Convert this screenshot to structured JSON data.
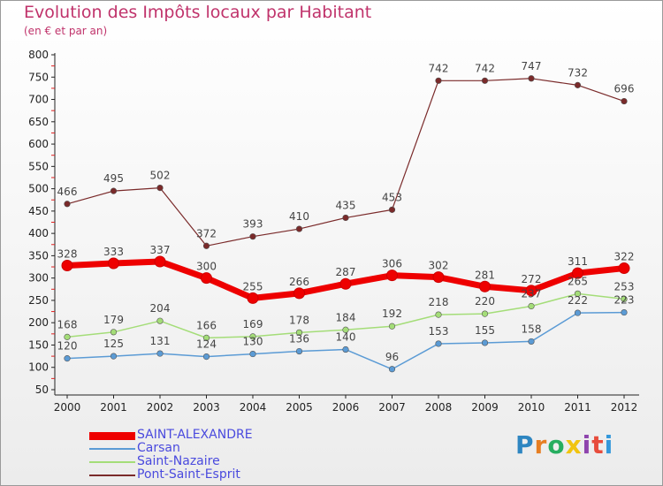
{
  "title": "Evolution des Impôts locaux par Habitant",
  "subtitle": "(en € et par an)",
  "logo": {
    "text": "Proxiti",
    "colors": [
      "#2e86c1",
      "#e67e22",
      "#27ae60",
      "#f1c40f",
      "#8e44ad",
      "#e74c3c",
      "#3498db"
    ]
  },
  "chart_data": {
    "type": "line",
    "title": "Evolution des Impôts locaux par Habitant",
    "subtitle": "(en € et par an)",
    "xlabel": "",
    "ylabel": "",
    "categories": [
      "2000",
      "2001",
      "2002",
      "2003",
      "2004",
      "2005",
      "2006",
      "2007",
      "2008",
      "2009",
      "2010",
      "2011",
      "2012"
    ],
    "yticks": [
      50,
      100,
      150,
      200,
      250,
      300,
      350,
      400,
      450,
      500,
      550,
      600,
      650,
      700,
      750,
      800
    ],
    "ylim": [
      50,
      800
    ],
    "grid": false,
    "legend_position": "bottom-left",
    "series": [
      {
        "name": "SAINT-ALEXANDRE",
        "color": "#ee0000",
        "width": 7,
        "values": [
          328,
          333,
          337,
          300,
          255,
          266,
          287,
          306,
          302,
          281,
          272,
          311,
          322
        ]
      },
      {
        "name": "Carsan",
        "color": "#5b9bd5",
        "width": 1.5,
        "values": [
          120,
          125,
          131,
          124,
          130,
          136,
          140,
          96,
          153,
          155,
          158,
          222,
          223
        ]
      },
      {
        "name": "Saint-Nazaire",
        "color": "#a4dd78",
        "width": 1.5,
        "values": [
          168,
          179,
          204,
          166,
          169,
          178,
          184,
          192,
          218,
          220,
          237,
          265,
          253
        ]
      },
      {
        "name": "Pont-Saint-Esprit",
        "color": "#7a2a2a",
        "width": 1.2,
        "values": [
          466,
          495,
          502,
          372,
          393,
          410,
          435,
          453,
          742,
          742,
          747,
          732,
          696
        ]
      }
    ]
  }
}
